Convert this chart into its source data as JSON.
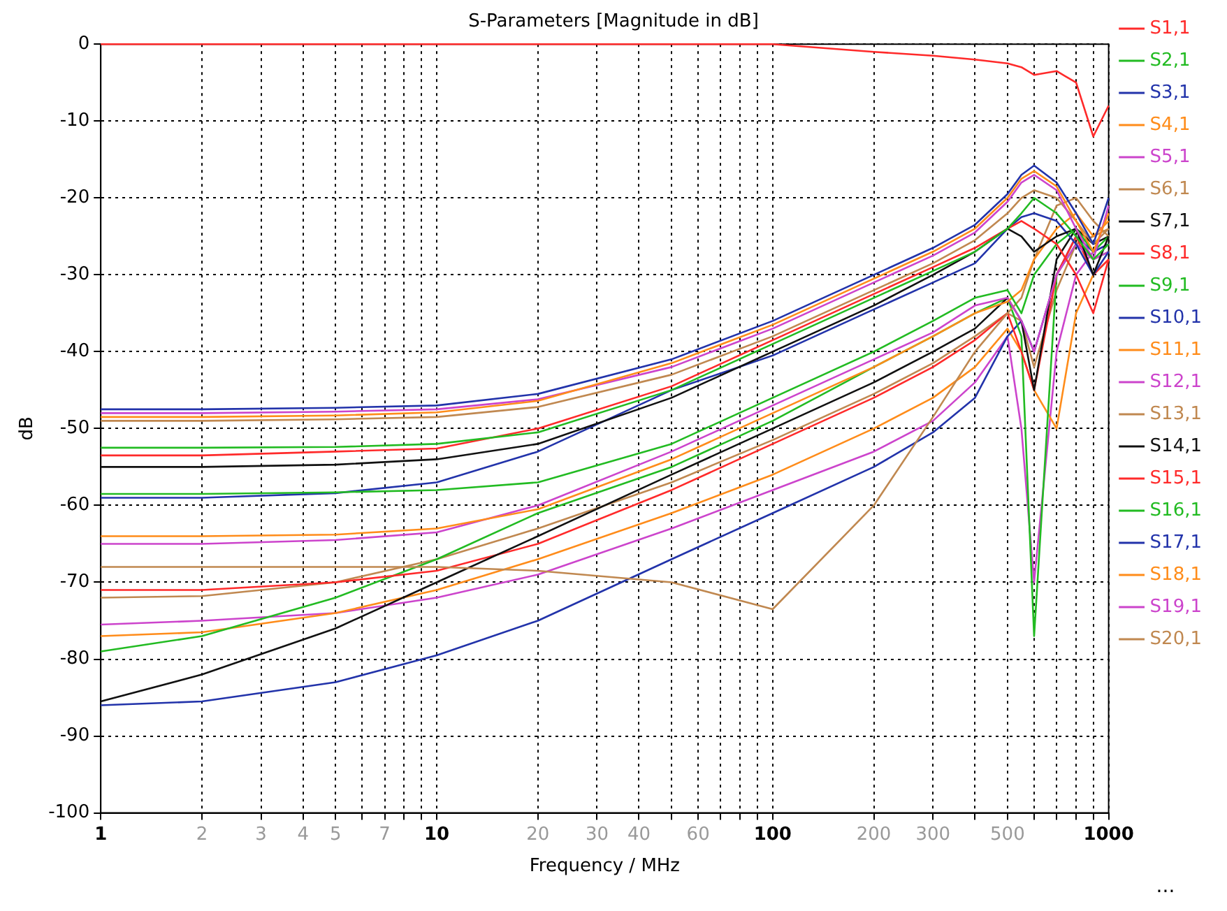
{
  "chart_data": {
    "type": "line",
    "title": "S-Parameters [Magnitude in dB]",
    "xlabel": "Frequency / MHz",
    "ylabel": "dB",
    "log": "x",
    "grid": true,
    "legend": "right",
    "marker": "none",
    "line_style": "solid",
    "x": [
      1,
      2,
      5,
      10,
      20,
      50,
      100,
      200,
      300,
      400,
      500,
      550,
      600,
      700,
      800,
      900,
      1000
    ],
    "xlim": [
      1,
      1000
    ],
    "xticks": [
      1,
      2,
      3,
      4,
      5,
      {
        "value": 6,
        "label": null
      },
      7,
      {
        "value": 8,
        "label": null
      },
      {
        "value": 9,
        "label": null
      },
      10,
      20,
      30,
      40,
      {
        "value": 50,
        "label": null
      },
      60,
      {
        "value": 70,
        "label": null
      },
      {
        "value": 80,
        "label": null
      },
      {
        "value": 90,
        "label": null
      },
      100,
      200,
      300,
      {
        "value": 400,
        "label": null
      },
      500,
      {
        "value": 600,
        "label": null
      },
      {
        "value": 700,
        "label": null
      },
      {
        "value": 800,
        "label": null
      },
      {
        "value": 900,
        "label": null
      },
      1000
    ],
    "ylim": [
      -100,
      0
    ],
    "yticks": [
      -100,
      -90,
      -80,
      -70,
      -60,
      -50,
      -40,
      -30,
      -20,
      -10,
      0
    ],
    "annotations": [
      "..."
    ],
    "series": [
      {
        "name": "S1,1",
        "color": "#ff2a2a",
        "values": [
          0,
          0,
          0,
          0,
          0,
          0,
          0,
          -1,
          -1.5,
          -2,
          -2.5,
          -3,
          -4,
          -3.5,
          -5,
          -12,
          -8
        ]
      },
      {
        "name": "S2,1",
        "color": "#22bb22",
        "values": [
          -52.5,
          -52.5,
          -52.4,
          -52,
          -50.5,
          -45,
          -39,
          -33,
          -29.5,
          -27,
          -24,
          -22,
          -20,
          -22,
          -25,
          -28,
          -26
        ]
      },
      {
        "name": "S3,1",
        "color": "#2233aa",
        "values": [
          -47.5,
          -47.5,
          -47.3,
          -47,
          -45.5,
          -41,
          -36,
          -30,
          -26.5,
          -23.5,
          -19.5,
          -17,
          -15.8,
          -18,
          -22,
          -26,
          -20
        ]
      },
      {
        "name": "S4,1",
        "color": "#ff8c1a",
        "values": [
          -48.5,
          -48.5,
          -48.3,
          -47.9,
          -46.4,
          -41.5,
          -36.5,
          -30.5,
          -27,
          -24,
          -20,
          -17.5,
          -16.5,
          -18.5,
          -23,
          -27,
          -22
        ]
      },
      {
        "name": "S5,1",
        "color": "#cc44cc",
        "values": [
          -48,
          -48,
          -47.8,
          -47.5,
          -46.2,
          -42,
          -37,
          -31,
          -27.5,
          -24.5,
          -20.5,
          -18,
          -17,
          -19,
          -24,
          -28,
          -21
        ]
      },
      {
        "name": "S6,1",
        "color": "#c08850",
        "values": [
          -49,
          -49,
          -48.8,
          -48.5,
          -47.2,
          -43,
          -38,
          -32,
          -28.5,
          -25.5,
          -22,
          -20,
          -19,
          -20,
          -23,
          -26,
          -24
        ]
      },
      {
        "name": "S7,1",
        "color": "#111111",
        "values": [
          -55,
          -55,
          -54.7,
          -54,
          -52,
          -46,
          -40,
          -34,
          -30,
          -27,
          -24,
          -25,
          -27,
          -25,
          -24,
          -30,
          -25
        ]
      },
      {
        "name": "S8,1",
        "color": "#ff2a2a",
        "values": [
          -53.5,
          -53.5,
          -53,
          -52.6,
          -50,
          -44.5,
          -38.5,
          -32.5,
          -29,
          -26.5,
          -24,
          -23,
          -24,
          -26,
          -30,
          -35,
          -28
        ]
      },
      {
        "name": "S9,1",
        "color": "#22bb22",
        "values": [
          -58.5,
          -58.5,
          -58.3,
          -58,
          -57,
          -52,
          -46,
          -40,
          -36,
          -33,
          -32,
          -35,
          -30,
          -26,
          -24,
          -27,
          -25
        ]
      },
      {
        "name": "S10,1",
        "color": "#2233aa",
        "values": [
          -59,
          -59,
          -58.4,
          -57,
          -53,
          -45,
          -40.5,
          -34.5,
          -31,
          -28.5,
          -24,
          -22.5,
          -22,
          -23,
          -26,
          -30,
          -27
        ]
      },
      {
        "name": "S11,1",
        "color": "#ff8c1a",
        "values": [
          -64,
          -64,
          -63.8,
          -63,
          -60.5,
          -54,
          -48,
          -42,
          -38,
          -35,
          -33.5,
          -32,
          -28,
          -24,
          -22,
          -25,
          -23
        ]
      },
      {
        "name": "S12,1",
        "color": "#cc44cc",
        "values": [
          -65,
          -65,
          -64.5,
          -63.5,
          -60,
          -53,
          -47,
          -41,
          -37.5,
          -34,
          -33,
          -36,
          -40,
          -30,
          -26,
          -28,
          -27
        ]
      },
      {
        "name": "S13,1",
        "color": "#c08850",
        "values": [
          -68,
          -68,
          -68,
          -68,
          -68.5,
          -70,
          -73.5,
          -60,
          -48.5,
          -40,
          -35,
          -33,
          -28,
          -21,
          -20,
          -23,
          -25
        ]
      },
      {
        "name": "S14,1",
        "color": "#111111",
        "values": [
          -85.5,
          -82,
          -76,
          -70,
          -64,
          -56,
          -50,
          -44,
          -40,
          -37,
          -33,
          -36,
          -45,
          -28,
          -24,
          -26,
          -25
        ]
      },
      {
        "name": "S15,1",
        "color": "#ff2a2a",
        "values": [
          -71,
          -71,
          -70,
          -68.5,
          -65,
          -58,
          -52,
          -46,
          -42,
          -38.5,
          -35,
          -40,
          -45,
          -30,
          -25,
          -30,
          -28
        ]
      },
      {
        "name": "S16,1",
        "color": "#22bb22",
        "values": [
          -79,
          -77,
          -72,
          -67,
          -61,
          -55,
          -49,
          -42,
          -38,
          -35,
          -33,
          -38,
          -77,
          -30,
          -26,
          -28,
          -27
        ]
      },
      {
        "name": "S17,1",
        "color": "#2233aa",
        "values": [
          -86,
          -85.5,
          -83,
          -79.5,
          -75,
          -67,
          -61,
          -55,
          -50.5,
          -46,
          -38,
          -36,
          -40,
          -30,
          -25,
          -27,
          -26
        ]
      },
      {
        "name": "S18,1",
        "color": "#ff8c1a",
        "values": [
          -77,
          -76.5,
          -74,
          -71,
          -67,
          -61,
          -56,
          -50,
          -46,
          -42,
          -37,
          -40,
          -45,
          -50,
          -35,
          -30,
          -28
        ]
      },
      {
        "name": "S19,1",
        "color": "#cc44cc",
        "values": [
          -75.5,
          -75,
          -74,
          -72,
          -69,
          -63,
          -58,
          -53,
          -49,
          -44,
          -38,
          -50,
          -70,
          -40,
          -30,
          -27,
          -26
        ]
      },
      {
        "name": "S20,1",
        "color": "#c08850",
        "values": [
          -72,
          -71.8,
          -70,
          -67,
          -63,
          -57,
          -51.5,
          -45.5,
          -41.5,
          -38,
          -35,
          -36,
          -42,
          -32,
          -26,
          -25,
          -24
        ]
      }
    ]
  }
}
